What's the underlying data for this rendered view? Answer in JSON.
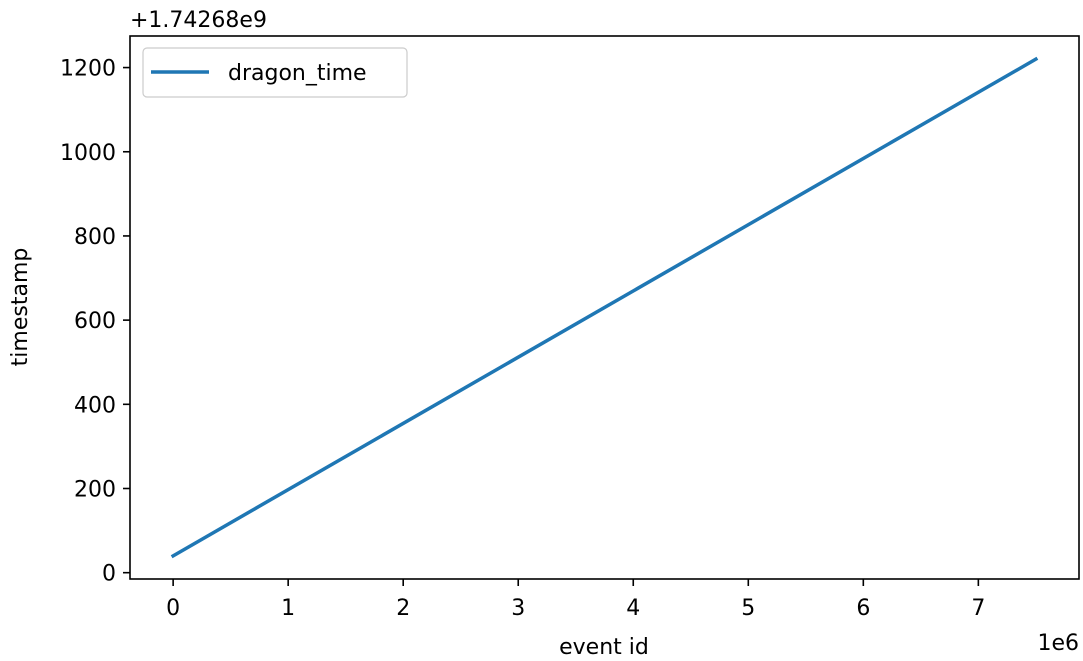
{
  "chart_data": {
    "type": "line",
    "title": "",
    "xlabel": "event id",
    "ylabel": "timestamp",
    "x_offset_label": "1e6",
    "y_offset_label": "+1.74268e9",
    "xlim": [
      -0.375,
      7.875
    ],
    "ylim": [
      -15,
      1275
    ],
    "x_ticks": [
      0,
      1,
      2,
      3,
      4,
      5,
      6,
      7
    ],
    "x_tick_labels": [
      "0",
      "1",
      "2",
      "3",
      "4",
      "5",
      "6",
      "7"
    ],
    "y_ticks": [
      0,
      200,
      400,
      600,
      800,
      1000,
      1200
    ],
    "y_tick_labels": [
      "0",
      "200",
      "400",
      "600",
      "800",
      "1000",
      "1200"
    ],
    "grid": false,
    "legend_position": "top-left",
    "series": [
      {
        "name": "dragon_time",
        "color": "#1f77b4",
        "x": [
          0,
          7.5
        ],
        "y": [
          40,
          1220
        ]
      }
    ]
  }
}
